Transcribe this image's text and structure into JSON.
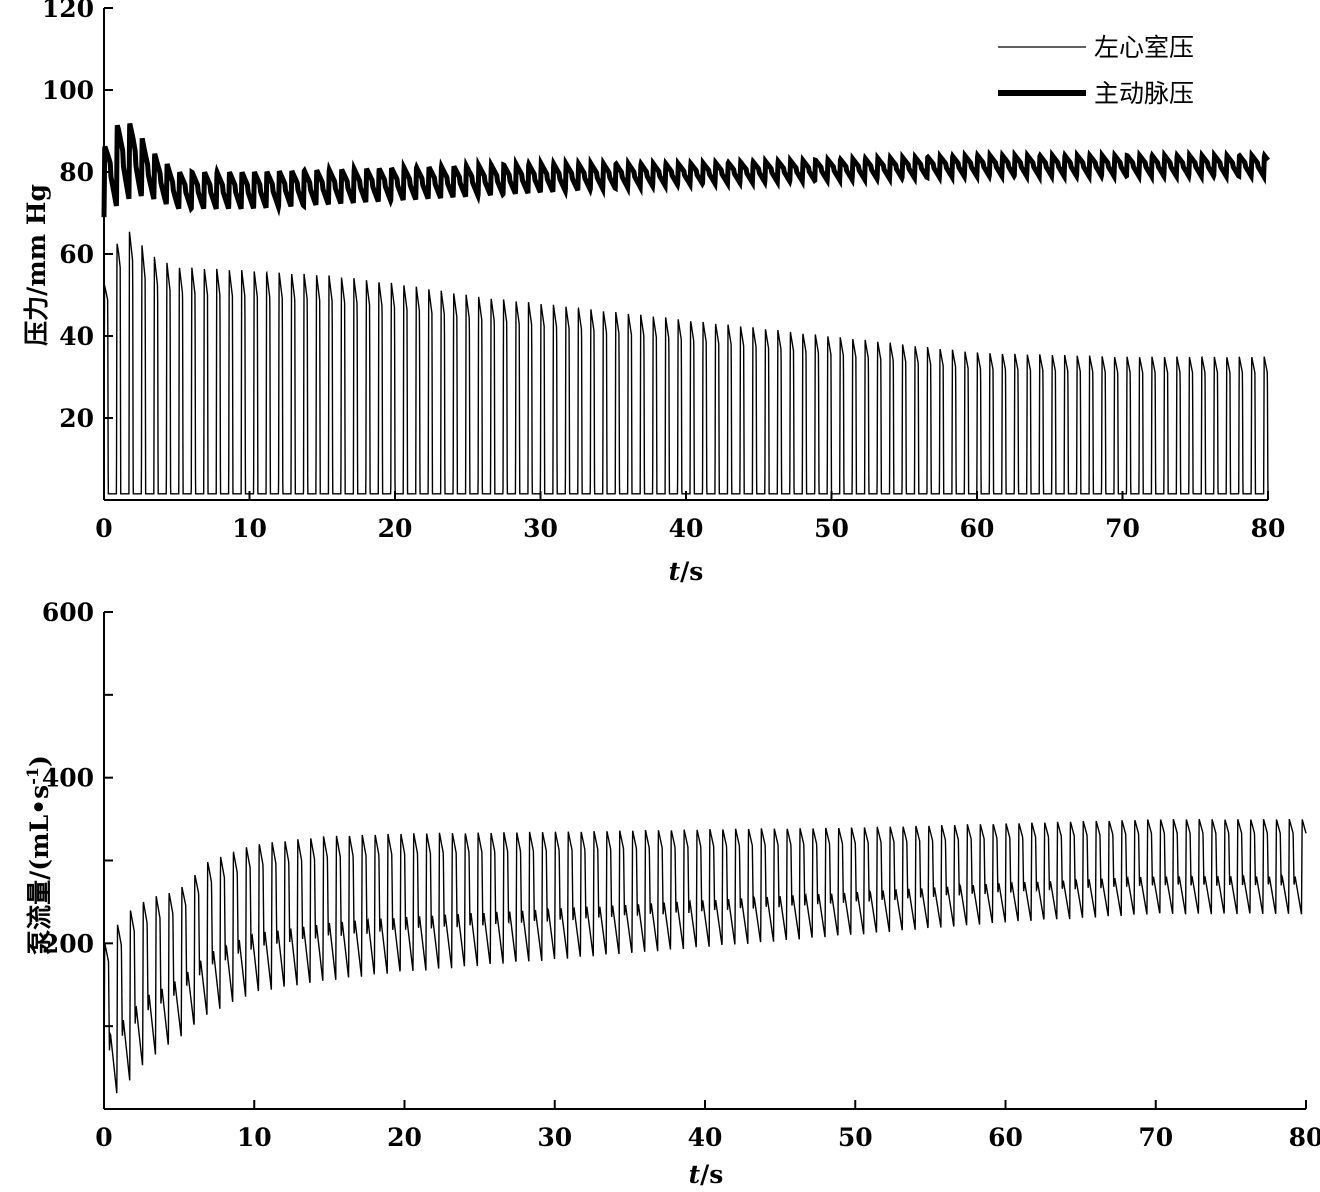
{
  "chart_data": [
    {
      "type": "line",
      "xlabel_italic": "t",
      "xlabel_unit": "/s",
      "ylabel": "压力/mm Hg",
      "xlim": [
        0,
        80
      ],
      "ylim": [
        0,
        120
      ],
      "xticks": [
        0,
        10,
        20,
        30,
        40,
        50,
        60,
        70,
        80
      ],
      "yticks": [
        20,
        40,
        60,
        80,
        100,
        120
      ],
      "grid": false,
      "legend_position": "top-right",
      "beat_period_s": 0.857,
      "series": [
        {
          "name": "左心室压",
          "style": "thin",
          "shape": "ventricular_pulse",
          "envelope": {
            "x": [
              0,
              1,
              2,
              3,
              5,
              10,
              15,
              20,
              25,
              30,
              40,
              50,
              60,
              70,
              80
            ],
            "max": [
              52,
              64,
              66,
              60,
              57,
              56,
              55,
              53,
              50,
              48,
              44,
              40,
              36,
              35,
              35
            ],
            "min": [
              1.5,
              1.5,
              1.5,
              1.5,
              1.5,
              1.5,
              1.5,
              1.5,
              1.5,
              1.5,
              1.5,
              1.5,
              1.5,
              1.5,
              1.5
            ]
          }
        },
        {
          "name": "主动脉压",
          "style": "thick",
          "shape": "arterial_pulse",
          "envelope": {
            "x": [
              0,
              1,
              2,
              3,
              5,
              10,
              20,
              30,
              40,
              50,
              60,
              70,
              80
            ],
            "max": [
              86,
              92,
              92,
              86,
              80,
              80,
              81,
              82,
              82,
              83,
              84,
              84,
              84
            ],
            "min": [
              69,
              72,
              74,
              74,
              71,
              71,
              73,
              75,
              77,
              78,
              79,
              79,
              79
            ]
          }
        }
      ]
    },
    {
      "type": "line",
      "xlabel_italic": "t",
      "xlabel_unit": "/s",
      "ylabel_main": "泵流量/(mL•s",
      "ylabel_sup": "-1",
      "ylabel_close": ")",
      "xlim": [
        0,
        80
      ],
      "ylim": [
        0,
        600
      ],
      "xticks": [
        0,
        10,
        20,
        30,
        40,
        50,
        60,
        70,
        80
      ],
      "yticks": [
        200,
        400,
        600
      ],
      "minor_yticks": [
        100,
        300,
        500
      ],
      "grid": false,
      "beat_period_s": 0.857,
      "series": [
        {
          "style": "thin",
          "shape": "flow_pulse",
          "envelope": {
            "x": [
              0,
              1,
              2,
              3,
              5,
              7,
              10,
              15,
              20,
              30,
              40,
              50,
              60,
              70,
              80
            ],
            "max": [
              200,
              225,
              245,
              255,
              265,
              300,
              320,
              330,
              333,
              335,
              338,
              340,
              345,
              350,
              350
            ],
            "min": [
              5,
              20,
              40,
              60,
              85,
              115,
              140,
              155,
              165,
              180,
              195,
              210,
              225,
              235,
              235
            ]
          }
        }
      ]
    }
  ]
}
